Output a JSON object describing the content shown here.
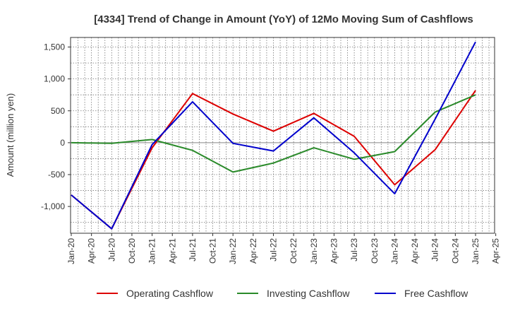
{
  "chart_data": {
    "type": "line",
    "title": "[4334]  Trend of Change in Amount (YoY) of 12Mo Moving Sum of Cashflows",
    "ylabel": "Amount (million yen)",
    "xlabel": "",
    "ylim": [
      -1420,
      1650
    ],
    "yticks": [
      1500,
      1000,
      500,
      0,
      -500,
      -1000
    ],
    "ytick_labels": [
      "1,500",
      "1,000",
      "500",
      "0",
      "-500",
      "-1,000"
    ],
    "categories": [
      "Jan-20",
      "Apr-20",
      "Jul-20",
      "Oct-20",
      "Jan-21",
      "Apr-21",
      "Jul-21",
      "Oct-21",
      "Jan-22",
      "Apr-22",
      "Jul-22",
      "Oct-22",
      "Jan-23",
      "Apr-23",
      "Jul-23",
      "Oct-23",
      "Jan-24",
      "Apr-24",
      "Jul-24",
      "Oct-24",
      "Jan-25",
      "Apr-25"
    ],
    "grid": true,
    "legend_position": "bottom",
    "series": [
      {
        "name": "Operating Cashflow",
        "color": "#dd0000",
        "x": [
          0,
          2,
          4,
          6,
          8,
          10,
          12,
          14,
          16,
          18,
          20
        ],
        "values": [
          -820,
          -1350,
          -80,
          770,
          450,
          180,
          460,
          100,
          -660,
          -110,
          820
        ]
      },
      {
        "name": "Investing Cashflow",
        "color": "#2a8a2a",
        "x": [
          0,
          2,
          4,
          6,
          8,
          10,
          12,
          14,
          16,
          18,
          20
        ],
        "values": [
          0,
          -10,
          50,
          -120,
          -460,
          -320,
          -80,
          -260,
          -140,
          480,
          750
        ]
      },
      {
        "name": "Free Cashflow",
        "color": "#0000cc",
        "x": [
          0,
          2,
          4,
          6,
          8,
          10,
          12,
          14,
          16,
          18,
          20
        ],
        "values": [
          -820,
          -1350,
          -30,
          640,
          -10,
          -130,
          390,
          -160,
          -800,
          370,
          1580
        ]
      }
    ]
  }
}
